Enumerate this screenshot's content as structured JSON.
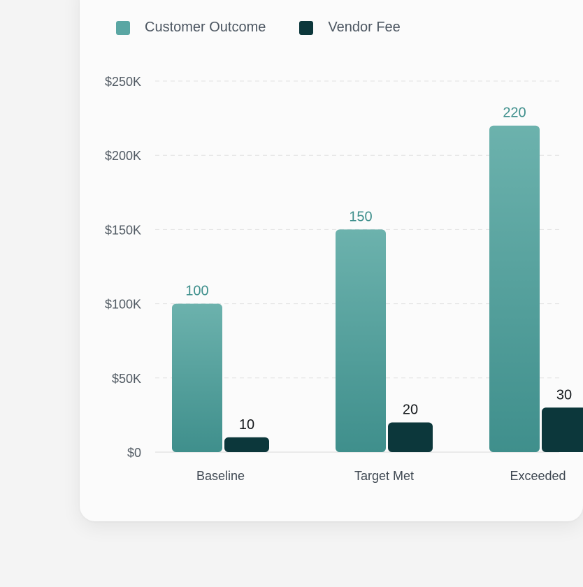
{
  "colors": {
    "outcome": "#5aa6a3",
    "outcome_top": "#6cb2ad",
    "outcome_bottom": "#3f8f8c",
    "fee": "#0c373b",
    "outcome_label": "#3e8f8c",
    "fee_label": "#15191c"
  },
  "chart_data": {
    "type": "bar",
    "categories": [
      "Baseline",
      "Target Met",
      "Exceeded"
    ],
    "series": [
      {
        "name": "Customer Outcome",
        "values": [
          100,
          150,
          220
        ]
      },
      {
        "name": "Vendor Fee",
        "values": [
          10,
          20,
          30
        ]
      }
    ],
    "data_labels": [
      [
        "100",
        "150",
        "220"
      ],
      [
        "10",
        "20",
        "30"
      ]
    ],
    "y_ticks": [
      "$0",
      "$50K",
      "$100K",
      "$150K",
      "$200K",
      "$250K"
    ],
    "ylim": [
      0,
      250
    ],
    "grid": true,
    "legend": "top-left"
  }
}
